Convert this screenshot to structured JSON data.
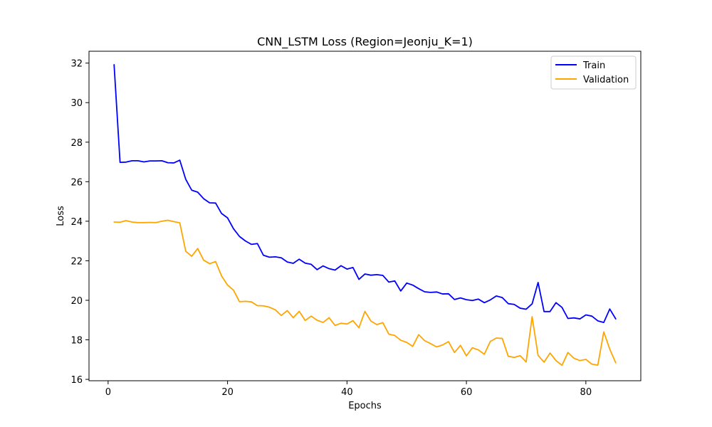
{
  "chart_data": {
    "type": "line",
    "title": "CNN_LSTM Loss (Region=Jeonju_K=1)",
    "xlabel": "Epochs",
    "ylabel": "Loss",
    "xlim": [
      -3.2,
      89.2
    ],
    "ylim": [
      15.93,
      32.6
    ],
    "xticks": [
      0,
      20,
      40,
      60,
      80
    ],
    "yticks": [
      16,
      18,
      20,
      22,
      24,
      26,
      28,
      30,
      32
    ],
    "grid": false,
    "legend_position": "upper right",
    "x": [
      1,
      2,
      3,
      4,
      5,
      6,
      7,
      8,
      9,
      10,
      11,
      12,
      13,
      14,
      15,
      16,
      17,
      18,
      19,
      20,
      21,
      22,
      23,
      24,
      25,
      26,
      27,
      28,
      29,
      30,
      31,
      32,
      33,
      34,
      35,
      36,
      37,
      38,
      39,
      40,
      41,
      42,
      43,
      44,
      45,
      46,
      47,
      48,
      49,
      50,
      51,
      52,
      53,
      54,
      55,
      56,
      57,
      58,
      59,
      60,
      61,
      62,
      63,
      64,
      65,
      66,
      67,
      68,
      69,
      70,
      71,
      72,
      73,
      74,
      75,
      76,
      77,
      78,
      79,
      80,
      81,
      82,
      83,
      84,
      85
    ],
    "series": [
      {
        "name": "Train",
        "color": "#0000ff",
        "values": [
          31.92,
          26.98,
          26.99,
          27.06,
          27.06,
          27.0,
          27.05,
          27.05,
          27.06,
          26.96,
          26.95,
          27.09,
          26.12,
          25.57,
          25.47,
          25.14,
          24.93,
          24.92,
          24.39,
          24.17,
          23.62,
          23.23,
          23.0,
          22.83,
          22.87,
          22.28,
          22.18,
          22.2,
          22.15,
          21.94,
          21.87,
          22.08,
          21.88,
          21.82,
          21.55,
          21.74,
          21.6,
          21.53,
          21.75,
          21.58,
          21.66,
          21.06,
          21.33,
          21.27,
          21.3,
          21.26,
          20.92,
          20.98,
          20.47,
          20.87,
          20.77,
          20.59,
          20.43,
          20.4,
          20.42,
          20.32,
          20.33,
          20.04,
          20.12,
          20.03,
          19.99,
          20.06,
          19.88,
          20.02,
          20.22,
          20.14,
          19.83,
          19.79,
          19.6,
          19.55,
          19.82,
          20.9,
          19.43,
          19.43,
          19.88,
          19.64,
          19.08,
          19.11,
          19.06,
          19.26,
          19.2,
          18.96,
          18.88,
          19.56,
          19.06
        ]
      },
      {
        "name": "Validation",
        "color": "#ffa500",
        "values": [
          23.96,
          23.95,
          24.03,
          23.96,
          23.93,
          23.93,
          23.94,
          23.93,
          24.0,
          24.05,
          23.98,
          23.92,
          22.48,
          22.23,
          22.62,
          22.03,
          21.85,
          21.96,
          21.23,
          20.77,
          20.51,
          19.93,
          19.95,
          19.92,
          19.73,
          19.72,
          19.65,
          19.52,
          19.23,
          19.48,
          19.12,
          19.44,
          18.98,
          19.2,
          18.99,
          18.88,
          19.12,
          18.73,
          18.84,
          18.8,
          18.97,
          18.61,
          19.44,
          18.95,
          18.77,
          18.87,
          18.29,
          18.22,
          17.98,
          17.87,
          17.67,
          18.26,
          17.96,
          17.81,
          17.64,
          17.74,
          17.91,
          17.36,
          17.72,
          17.19,
          17.6,
          17.49,
          17.27,
          17.92,
          18.09,
          18.07,
          17.17,
          17.11,
          17.2,
          16.88,
          19.17,
          17.21,
          16.87,
          17.33,
          16.95,
          16.71,
          17.36,
          17.07,
          16.95,
          17.01,
          16.77,
          16.72,
          18.4,
          17.53,
          16.84
        ]
      }
    ]
  }
}
